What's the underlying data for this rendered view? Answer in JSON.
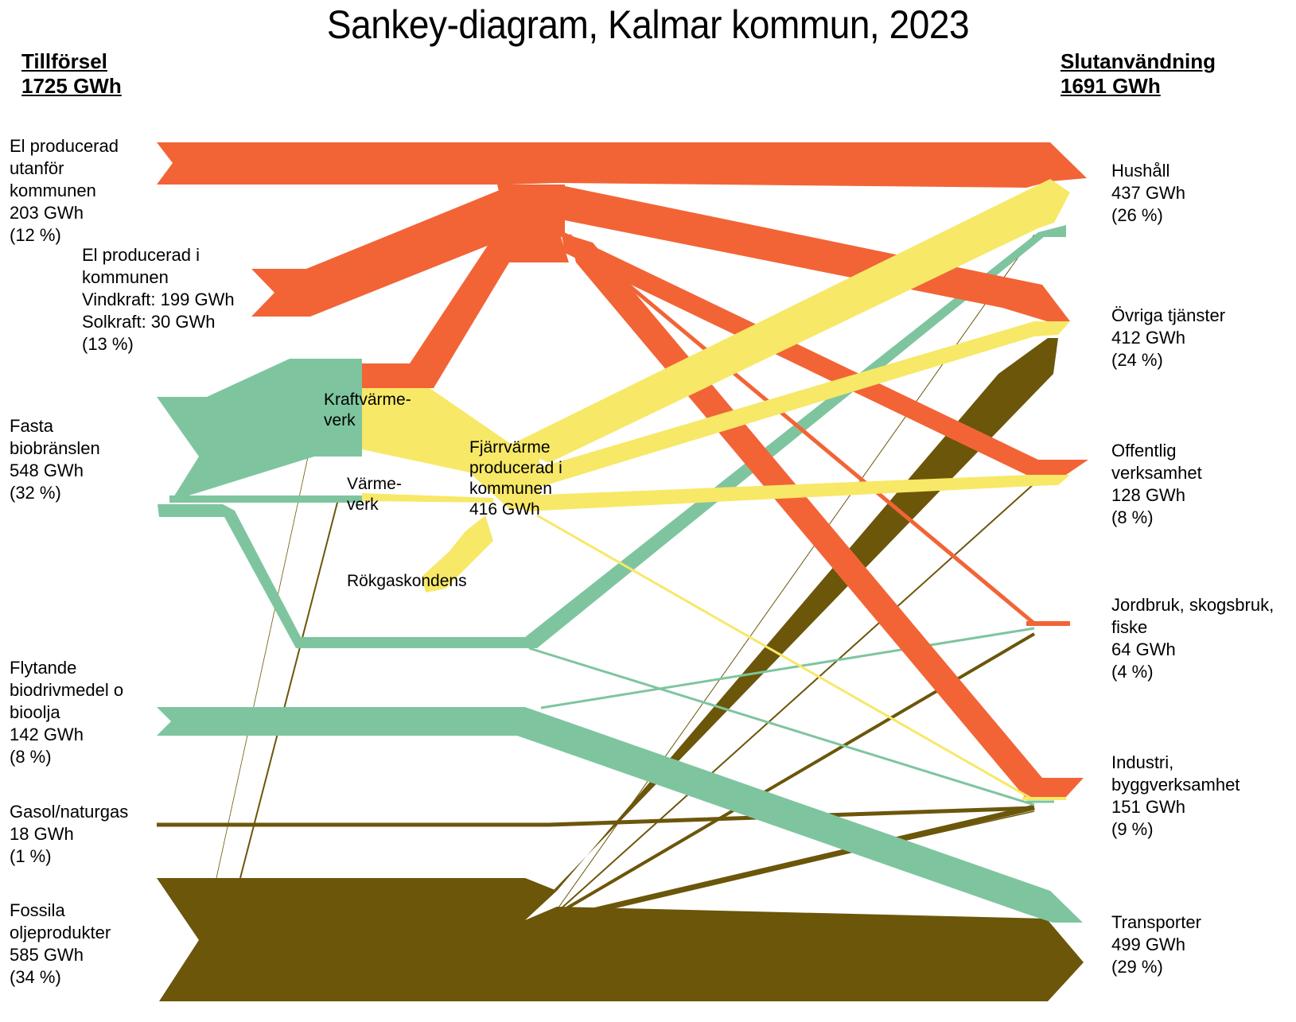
{
  "title": "Sankey-diagram, Kalmar kommun, 2023",
  "supply_header": {
    "label": "Tillförsel",
    "total": "1725 GWh"
  },
  "use_header": {
    "label": "Slutanvändning",
    "total": "1691 GWh"
  },
  "colors": {
    "electricity": "#f26436",
    "district_heating": "#f7e867",
    "biofuel": "#7ec59f",
    "fossil": "#6b560a"
  },
  "sources": [
    {
      "id": "el_outside",
      "lines": [
        "El producerad",
        "utanför",
        "kommunen",
        "203 GWh",
        "(12 %)"
      ]
    },
    {
      "id": "el_inside",
      "lines": [
        "El producerad i",
        "kommunen",
        "Vindkraft: 199 GWh",
        "Solkraft: 30 GWh",
        "(13 %)"
      ]
    },
    {
      "id": "solid_bio",
      "lines": [
        "Fasta",
        "biobränslen",
        "548 GWh",
        "(32 %)"
      ]
    },
    {
      "id": "liquid_bio",
      "lines": [
        "Flytande",
        "biodrivmedel o",
        "bioolja",
        "142 GWh",
        "(8 %)"
      ]
    },
    {
      "id": "gas",
      "lines": [
        "Gasol/naturgas",
        "18 GWh",
        "(1 %)"
      ]
    },
    {
      "id": "fossil_oil",
      "lines": [
        "Fossila",
        "oljeprodukter",
        "585 GWh",
        "(34 %)"
      ]
    }
  ],
  "sectors": [
    {
      "id": "households",
      "lines": [
        "Hushåll",
        "437 GWh",
        "(26 %)"
      ]
    },
    {
      "id": "services",
      "lines": [
        "Övriga tjänster",
        "412 GWh",
        "(24 %)"
      ]
    },
    {
      "id": "public",
      "lines": [
        "Offentlig",
        "verksamhet",
        "128 GWh",
        "(8 %)"
      ]
    },
    {
      "id": "agri",
      "lines": [
        "Jordbruk, skogsbruk,",
        "fiske",
        "64 GWh",
        "(4 %)"
      ]
    },
    {
      "id": "industry",
      "lines": [
        "Industri,",
        "byggverksamhet",
        "151 GWh",
        "(9 %)"
      ]
    },
    {
      "id": "transport",
      "lines": [
        "Transporter",
        "499 GWh",
        "(29 %)"
      ]
    }
  ],
  "nodes": {
    "chp": [
      "Kraftvärme-",
      "verk"
    ],
    "heat_plant": [
      "Värme-",
      "verk"
    ],
    "flue_gas": [
      "Rökgaskondens"
    ],
    "district_heat": [
      "Fjärrvärme",
      "producerad i",
      "kommunen",
      "416 GWh"
    ]
  }
}
